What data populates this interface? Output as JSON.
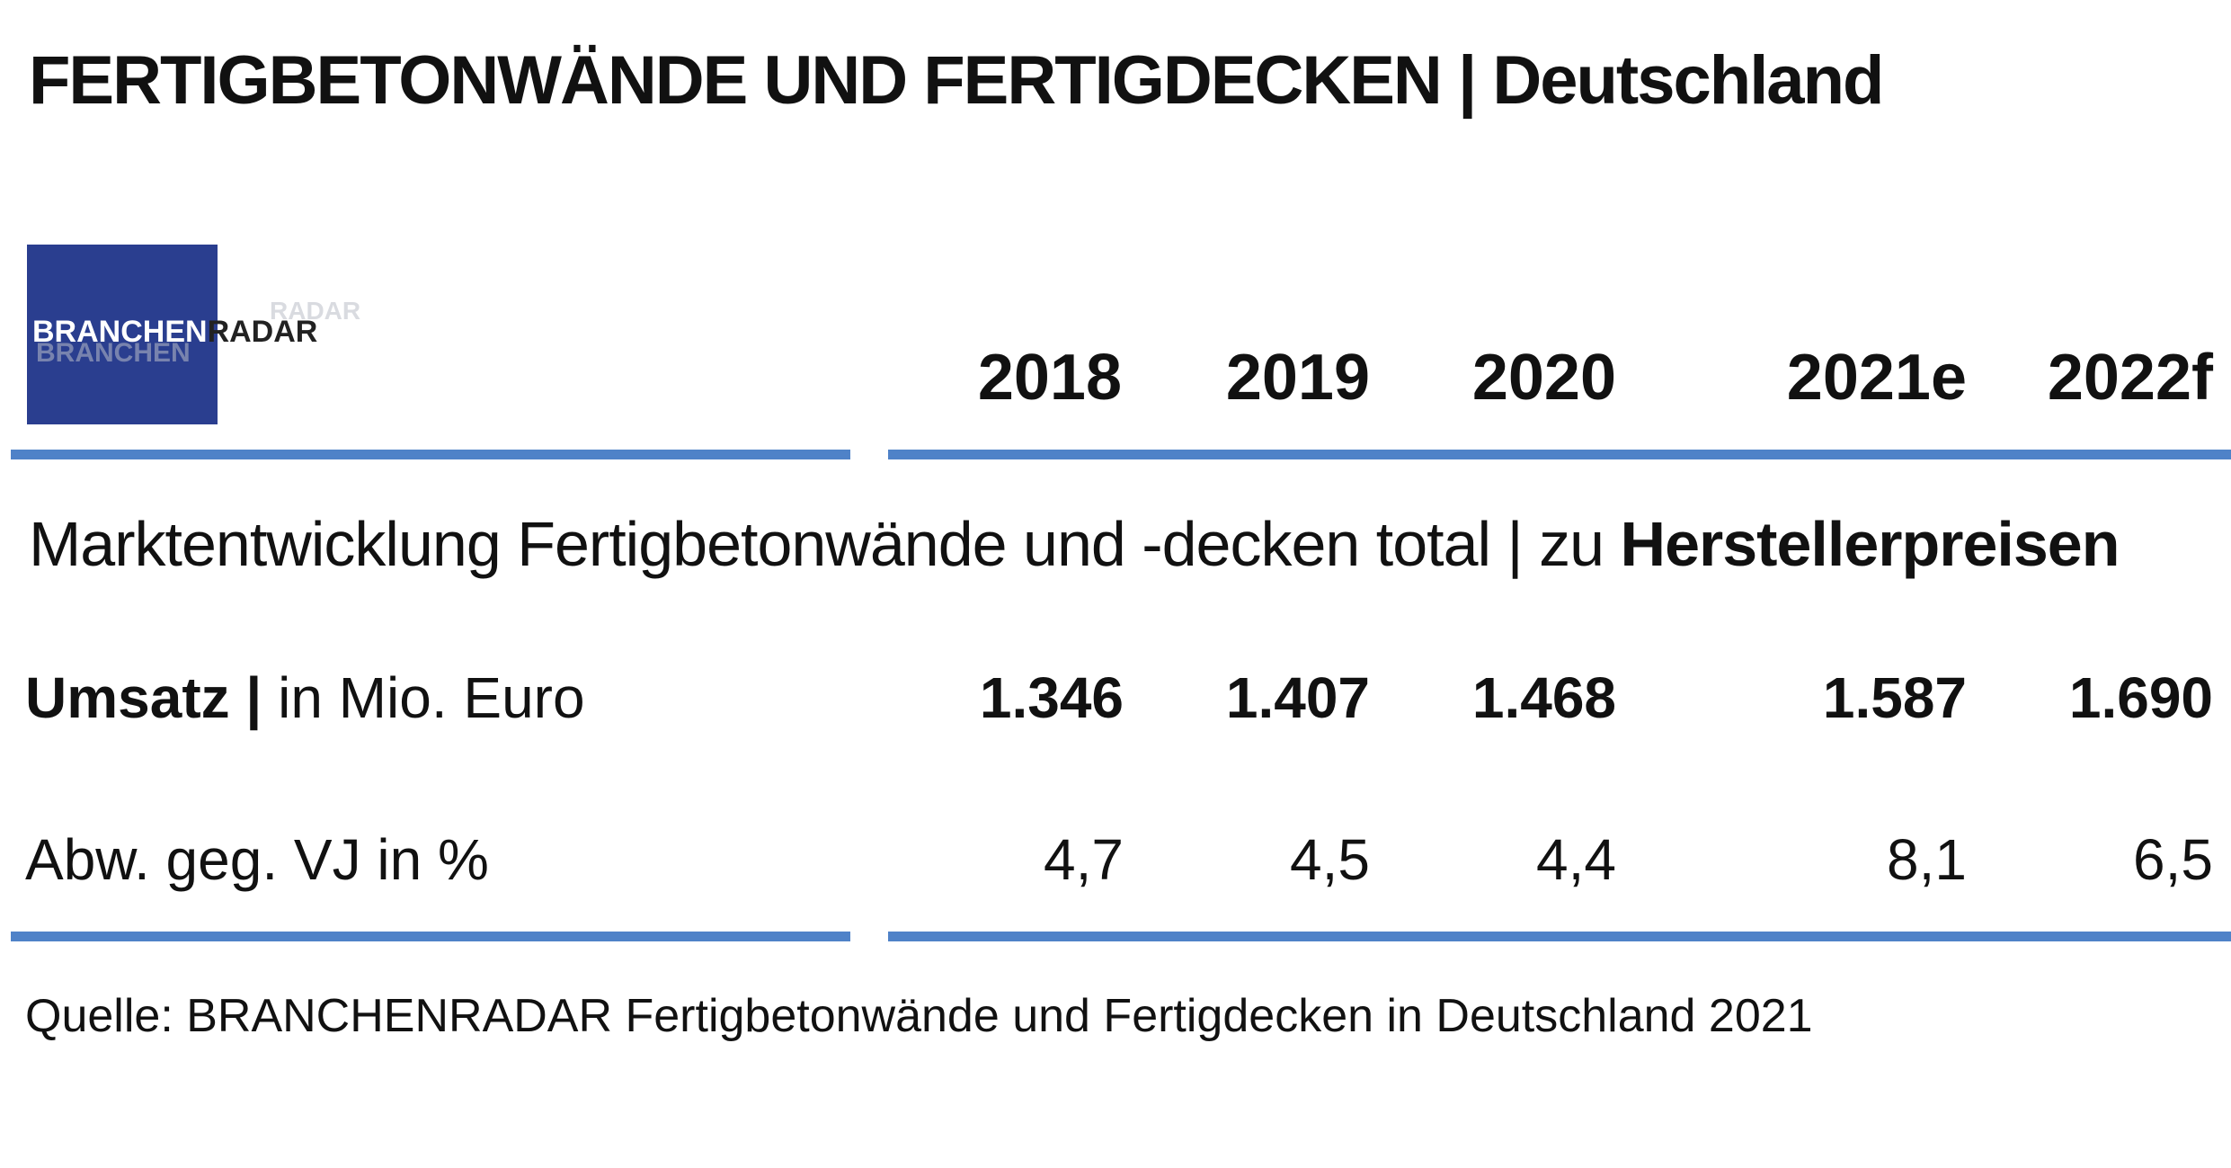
{
  "title": {
    "main": "FERTIGBETONWÄNDE UND FERTIGDECKEN",
    "separator": "|",
    "region": "Deutschland"
  },
  "logo": {
    "part1": "BRANCHEN",
    "part2": "RADAR",
    "color": "#2a3e8f"
  },
  "columns": [
    "2018",
    "2019",
    "2020",
    "2021e",
    "2022f"
  ],
  "subtitle": {
    "text": "Marktentwicklung Fertigbetonwände und -decken total | zu ",
    "bold": "Herstellerpreisen"
  },
  "rows": {
    "umsatz": {
      "label_bold": "Umsatz |",
      "label_rest": " in Mio. Euro",
      "values": [
        "1.346",
        "1.407",
        "1.468",
        "1.587",
        "1.690"
      ]
    },
    "abw": {
      "label": "Abw. geg. VJ in %",
      "values": [
        "4,7",
        "4,5",
        "4,4",
        "8,1",
        "6,5"
      ]
    }
  },
  "source": "Quelle: BRANCHENRADAR Fertigbetonwände und Fertigdecken in Deutschland 2021",
  "accent_color": "#4f82c8",
  "chart_data": {
    "type": "table",
    "title": "FERTIGBETONWÄNDE UND FERTIGDECKEN | Deutschland",
    "subtitle": "Marktentwicklung Fertigbetonwände und -decken total | zu Herstellerpreisen",
    "categories": [
      "2018",
      "2019",
      "2020",
      "2021e",
      "2022f"
    ],
    "series": [
      {
        "name": "Umsatz | in Mio. Euro",
        "values": [
          1346,
          1407,
          1468,
          1587,
          1690
        ]
      },
      {
        "name": "Abw. geg. VJ in %",
        "values": [
          4.7,
          4.5,
          4.4,
          8.1,
          6.5
        ]
      }
    ]
  }
}
